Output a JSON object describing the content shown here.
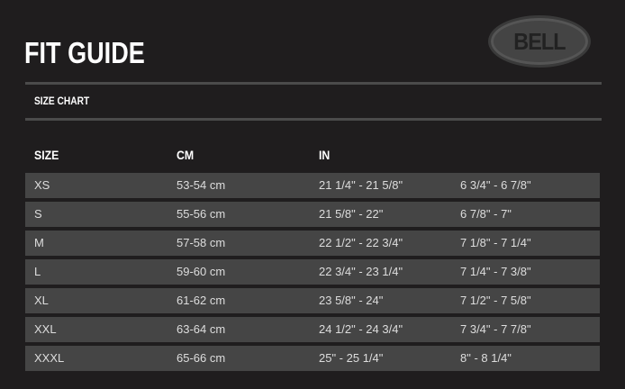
{
  "header": {
    "title": "FIT GUIDE",
    "logo_text": "BELL",
    "section": "SIZE CHART"
  },
  "table": {
    "columns": [
      "SIZE",
      "CM",
      "IN",
      ""
    ],
    "rows": [
      [
        "XS",
        "53-54 cm",
        "21 1/4\" - 21 5/8\"",
        "6 3/4\" - 6 7/8\""
      ],
      [
        "S",
        "55-56 cm",
        "21 5/8\" - 22\"",
        "6 7/8\" - 7\""
      ],
      [
        "M",
        "57-58 cm",
        "22 1/2\" - 22 3/4\"",
        "7 1/8\" - 7 1/4\""
      ],
      [
        "L",
        "59-60 cm",
        "22 3/4\" - 23 1/4\"",
        "7 1/4\" - 7 3/8\""
      ],
      [
        "XL",
        "61-62 cm",
        "23 5/8\" - 24\"",
        "7 1/2\" - 7 5/8\""
      ],
      [
        "XXL",
        "63-64 cm",
        "24 1/2\" - 24 3/4\"",
        "7 3/4\" - 7 7/8\""
      ],
      [
        "XXXL",
        "65-66 cm",
        "25\" - 25 1/4\"",
        "8\" - 8 1/4\""
      ]
    ]
  }
}
